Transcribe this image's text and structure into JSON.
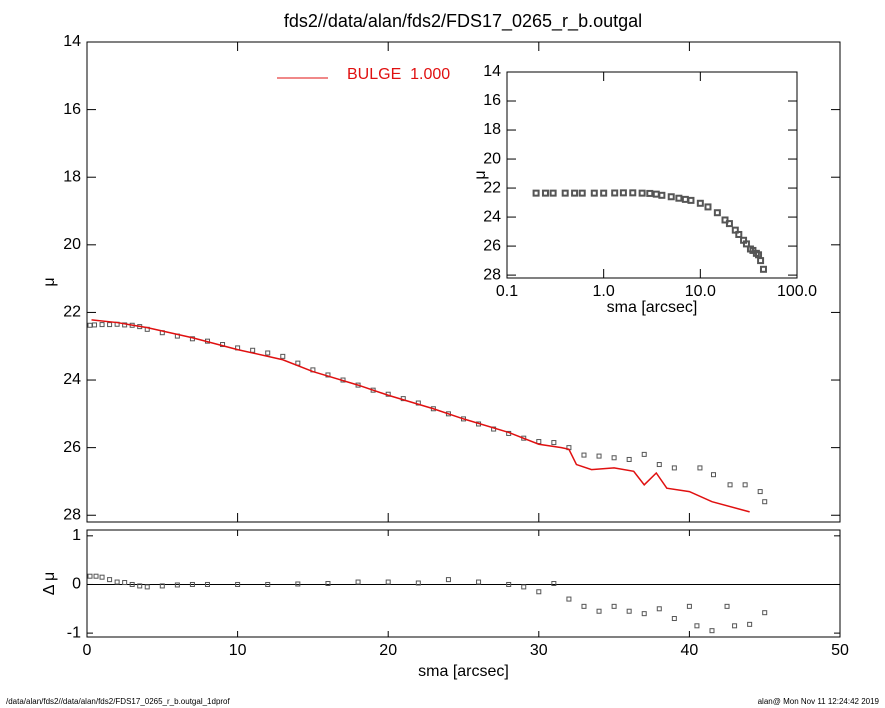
{
  "chart_data": [
    {
      "type": "scatter",
      "title": "fds2//data/alan/fds2/FDS17_0265_r_b.outgal",
      "ylabel": "μ",
      "xlim": [
        0,
        50
      ],
      "xticks": [
        0,
        10,
        20,
        30,
        40,
        50
      ],
      "xtick_labels": false,
      "ylim": [
        28.2,
        14
      ],
      "yticks": [
        14,
        16,
        18,
        20,
        22,
        24,
        26,
        28
      ],
      "legend": "top-left",
      "series": [
        {
          "style": "markers",
          "color": "#555555",
          "x": [
            0.2,
            0.5,
            1,
            1.5,
            2,
            2.5,
            3,
            3.5,
            4,
            5,
            6,
            7,
            8,
            9,
            10,
            11,
            12,
            13,
            14,
            15,
            16,
            17,
            18,
            19,
            20,
            21,
            22,
            23,
            24,
            25,
            26,
            27,
            28,
            29,
            30,
            31,
            32,
            33,
            34,
            35,
            36,
            37,
            38,
            39,
            40.7,
            41.6,
            42.7,
            43.7,
            44.7,
            45
          ],
          "values": [
            22.38,
            22.37,
            22.36,
            22.36,
            22.35,
            22.37,
            22.38,
            22.42,
            22.5,
            22.6,
            22.7,
            22.78,
            22.85,
            22.95,
            23.05,
            23.12,
            23.2,
            23.3,
            23.5,
            23.7,
            23.85,
            24.0,
            24.15,
            24.3,
            24.42,
            24.55,
            24.68,
            24.85,
            25.0,
            25.15,
            25.3,
            25.45,
            25.58,
            25.72,
            25.82,
            25.85,
            26.0,
            26.22,
            26.25,
            26.3,
            26.35,
            26.2,
            26.5,
            26.6,
            26.6,
            26.8,
            27.1,
            27.1,
            27.3,
            27.6
          ]
        },
        {
          "style": "line",
          "name": "BULGE  1.000",
          "color": "#e01010",
          "x": [
            0.3,
            2,
            4,
            7,
            10,
            13,
            15,
            18,
            20,
            23,
            25,
            28,
            30,
            31.5,
            32,
            32.5,
            33.5,
            35,
            36.3,
            37,
            37.8,
            38.5,
            40,
            41.5,
            44
          ],
          "values": [
            22.22,
            22.3,
            22.45,
            22.75,
            23.1,
            23.4,
            23.75,
            24.15,
            24.45,
            24.85,
            25.15,
            25.55,
            25.9,
            26.0,
            26.05,
            26.5,
            26.65,
            26.6,
            26.7,
            27.1,
            26.75,
            27.2,
            27.3,
            27.6,
            27.9
          ]
        }
      ]
    },
    {
      "type": "scatter",
      "ylabel": "Δ μ",
      "xlabel": "sma [arcsec]",
      "xlim": [
        0,
        50
      ],
      "xticks": [
        0,
        10,
        20,
        30,
        40,
        50
      ],
      "xtick_labels": true,
      "ylim": [
        -1.08,
        1.12
      ],
      "yticks": [
        -1,
        0,
        1
      ],
      "reference_line": 0,
      "series": [
        {
          "style": "markers",
          "color": "#555555",
          "x": [
            0.2,
            0.6,
            1,
            1.5,
            2,
            2.5,
            3,
            3.5,
            4,
            5,
            6,
            7,
            8,
            10,
            12,
            14,
            16,
            18,
            20,
            22,
            24,
            26,
            28,
            29,
            30,
            31,
            32,
            33,
            34,
            35,
            36,
            37,
            38,
            39,
            40,
            40.5,
            41.5,
            42.5,
            43,
            44,
            45
          ],
          "values": [
            0.17,
            0.17,
            0.15,
            0.1,
            0.05,
            0.04,
            0.0,
            -0.03,
            -0.05,
            -0.03,
            -0.01,
            0.0,
            0.0,
            0.0,
            0.0,
            0.01,
            0.02,
            0.05,
            0.05,
            0.03,
            0.1,
            0.05,
            0.0,
            -0.05,
            -0.15,
            0.02,
            -0.3,
            -0.45,
            -0.55,
            -0.45,
            -0.55,
            -0.6,
            -0.5,
            -0.7,
            -0.45,
            -0.85,
            -0.95,
            -0.45,
            -0.85,
            -0.82,
            -0.58
          ]
        }
      ]
    },
    {
      "type": "scatter",
      "ylabel": "μ",
      "xlabel": "sma [arcsec]",
      "xlog": true,
      "xlim": [
        0.1,
        100
      ],
      "xticks": [
        {
          "value": 0.1,
          "label": "0.1"
        },
        {
          "value": 1,
          "label": "1.0"
        },
        {
          "value": 10,
          "label": "10.0"
        },
        {
          "value": 100,
          "label": "100.0"
        }
      ],
      "xtick_labels": true,
      "ylim": [
        28.2,
        14
      ],
      "yticks": [
        14,
        16,
        18,
        20,
        22,
        24,
        26,
        28
      ],
      "series": [
        {
          "style": "markers",
          "color": "#555555",
          "x": [
            0.2,
            0.25,
            0.3,
            0.4,
            0.5,
            0.6,
            0.8,
            1,
            1.3,
            1.6,
            2,
            2.5,
            3,
            3.5,
            4,
            5,
            6,
            7,
            8,
            10,
            12,
            15,
            18,
            20,
            23,
            25,
            28,
            30,
            33,
            35,
            38,
            40,
            42,
            45
          ],
          "values": [
            22.35,
            22.35,
            22.35,
            22.35,
            22.35,
            22.35,
            22.35,
            22.35,
            22.34,
            22.33,
            22.33,
            22.35,
            22.37,
            22.42,
            22.5,
            22.6,
            22.7,
            22.78,
            22.85,
            23.05,
            23.3,
            23.7,
            24.2,
            24.45,
            24.9,
            25.2,
            25.6,
            25.85,
            26.2,
            26.3,
            26.5,
            26.6,
            27.0,
            27.6
          ]
        }
      ]
    }
  ],
  "footer": {
    "left": "/data/alan/fds2//data/alan/fds2/FDS17_0265_r_b.outgal_1dprof",
    "right": "alan@  Mon Nov 11 12:24:42 2019"
  }
}
